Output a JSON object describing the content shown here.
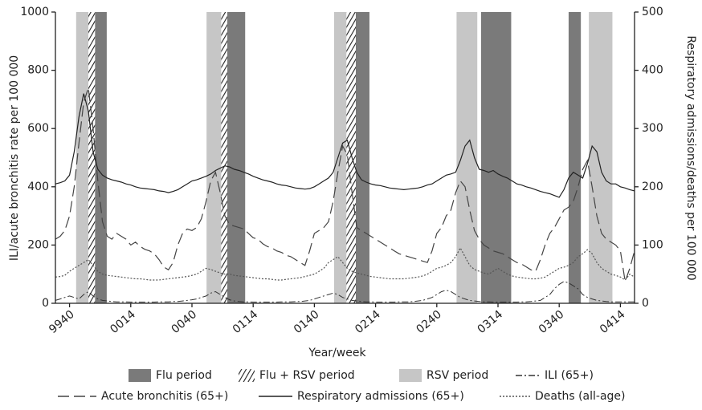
{
  "chart_data": {
    "type": "line",
    "xlabel": "Year/week",
    "ylabel": "ILI/acute bronchitis rate per 100 000",
    "y2label": "Respiratory admissions/deaths per 100 000",
    "ylim": [
      0,
      1000
    ],
    "yticks": [
      0,
      200,
      400,
      600,
      800,
      1000
    ],
    "y2lim": [
      0,
      500
    ],
    "y2ticks": [
      0,
      100,
      200,
      300,
      400,
      500
    ],
    "categories": [
      null,
      null,
      null,
      "9940",
      null,
      null,
      null,
      null,
      null,
      null,
      null,
      null,
      null,
      null,
      null,
      null,
      "0014",
      null,
      null,
      null,
      null,
      null,
      null,
      null,
      null,
      null,
      null,
      null,
      null,
      "0040",
      null,
      null,
      null,
      null,
      null,
      null,
      null,
      null,
      null,
      null,
      null,
      null,
      "0114",
      null,
      null,
      null,
      null,
      null,
      null,
      null,
      null,
      null,
      null,
      null,
      null,
      "0140",
      null,
      null,
      null,
      null,
      null,
      null,
      null,
      null,
      null,
      null,
      null,
      null,
      "0214",
      null,
      null,
      null,
      null,
      null,
      null,
      null,
      null,
      null,
      null,
      null,
      null,
      "0240",
      null,
      null,
      null,
      null,
      null,
      null,
      null,
      null,
      null,
      null,
      null,
      null,
      "0314",
      null,
      null,
      null,
      null,
      null,
      null,
      null,
      null,
      null,
      null,
      null,
      null,
      "0340",
      null,
      null,
      null,
      null,
      null,
      null,
      null,
      null,
      null,
      null,
      null,
      null,
      "0414",
      null,
      null,
      null
    ],
    "bands": [
      {
        "name": "Flu period",
        "color": "#7a7a7a",
        "periods": [
          [
            8.4,
            10.9
          ],
          [
            36.5,
            40.3
          ],
          [
            63.8,
            66.7
          ],
          [
            90.4,
            96.8
          ],
          [
            109.0,
            111.6
          ]
        ]
      },
      {
        "name": "Flu + RSV period",
        "color": "#ffffff",
        "hatch": true,
        "periods": [
          [
            7.0,
            8.4
          ],
          [
            35.2,
            36.5
          ],
          [
            61.8,
            63.8
          ]
        ]
      },
      {
        "name": "RSV period",
        "color": "#c6c6c6",
        "periods": [
          [
            4.4,
            7.0
          ],
          [
            32.1,
            35.2
          ],
          [
            59.2,
            61.8
          ],
          [
            85.2,
            89.6
          ],
          [
            113.3,
            118.3
          ]
        ]
      }
    ],
    "series": [
      {
        "name": "ILI (65+)",
        "color": "#333333",
        "dash": "8 3 2 3",
        "width": 1,
        "values": [
          10,
          15,
          20,
          25,
          20,
          15,
          30,
          40,
          25,
          15,
          10,
          8,
          6,
          5,
          5,
          5,
          4,
          4,
          4,
          4,
          4,
          4,
          5,
          5,
          5,
          6,
          6,
          8,
          10,
          12,
          15,
          20,
          25,
          35,
          40,
          30,
          20,
          12,
          8,
          6,
          5,
          5,
          4,
          4,
          4,
          4,
          4,
          4,
          5,
          5,
          5,
          6,
          6,
          8,
          10,
          15,
          20,
          25,
          30,
          35,
          30,
          20,
          15,
          10,
          8,
          6,
          5,
          5,
          4,
          4,
          4,
          4,
          4,
          5,
          5,
          5,
          6,
          8,
          10,
          15,
          20,
          30,
          40,
          45,
          40,
          30,
          20,
          15,
          10,
          8,
          6,
          5,
          5,
          4,
          4,
          4,
          4,
          4,
          4,
          5,
          5,
          6,
          8,
          10,
          20,
          30,
          50,
          65,
          75,
          70,
          60,
          50,
          30,
          20,
          15,
          10,
          8,
          6,
          5,
          5,
          5,
          5,
          5,
          5
        ]
      },
      {
        "name": "Acute bronchitis (65+)",
        "color": "#444444",
        "dash": "14 6",
        "width": 1.2,
        "values": [
          220,
          230,
          250,
          300,
          400,
          550,
          690,
          740,
          600,
          420,
          280,
          230,
          220,
          240,
          230,
          220,
          200,
          210,
          195,
          185,
          180,
          170,
          150,
          125,
          115,
          140,
          200,
          240,
          255,
          250,
          260,
          290,
          350,
          420,
          450,
          380,
          300,
          270,
          265,
          260,
          255,
          240,
          225,
          220,
          205,
          195,
          190,
          180,
          175,
          165,
          160,
          150,
          140,
          130,
          180,
          240,
          250,
          260,
          280,
          350,
          450,
          540,
          510,
          380,
          260,
          250,
          240,
          230,
          220,
          210,
          200,
          190,
          180,
          170,
          165,
          160,
          155,
          150,
          145,
          140,
          180,
          240,
          260,
          300,
          320,
          380,
          420,
          400,
          320,
          250,
          220,
          200,
          190,
          180,
          175,
          170,
          160,
          150,
          140,
          135,
          125,
          115,
          110,
          150,
          200,
          240,
          260,
          290,
          320,
          330,
          350,
          400,
          460,
          490,
          400,
          300,
          240,
          220,
          210,
          200,
          180,
          75,
          120,
          180
        ]
      },
      {
        "name": "Respiratory admissions (65+)",
        "color": "#222222",
        "dash": "",
        "width": 1.2,
        "axis": "y2",
        "values": [
          205,
          207,
          210,
          220,
          260,
          320,
          360,
          330,
          260,
          230,
          220,
          215,
          212,
          210,
          208,
          205,
          203,
          200,
          198,
          197,
          196,
          195,
          193,
          192,
          190,
          192,
          195,
          200,
          205,
          210,
          212,
          215,
          218,
          222,
          228,
          232,
          236,
          234,
          230,
          228,
          225,
          222,
          218,
          215,
          212,
          210,
          208,
          205,
          203,
          202,
          200,
          198,
          197,
          196,
          197,
          200,
          205,
          210,
          215,
          225,
          250,
          275,
          280,
          250,
          225,
          212,
          208,
          205,
          203,
          202,
          200,
          198,
          197,
          196,
          195,
          196,
          197,
          198,
          200,
          203,
          205,
          210,
          215,
          220,
          222,
          225,
          245,
          270,
          280,
          250,
          230,
          228,
          225,
          228,
          222,
          218,
          215,
          210,
          205,
          203,
          200,
          198,
          195,
          192,
          190,
          188,
          185,
          182,
          195,
          215,
          225,
          220,
          215,
          240,
          270,
          260,
          225,
          210,
          205,
          205,
          200,
          198,
          195,
          193
        ]
      },
      {
        "name": "Deaths (all-age)",
        "color": "#555555",
        "dash": "2 2",
        "width": 1.2,
        "axis": "y2",
        "values": [
          45,
          46,
          48,
          55,
          60,
          65,
          70,
          75,
          65,
          55,
          50,
          48,
          47,
          46,
          45,
          44,
          43,
          42,
          42,
          41,
          40,
          40,
          40,
          41,
          42,
          43,
          44,
          45,
          46,
          48,
          50,
          55,
          60,
          58,
          55,
          52,
          50,
          50,
          48,
          47,
          46,
          45,
          44,
          43,
          42,
          42,
          41,
          40,
          40,
          41,
          42,
          43,
          44,
          46,
          48,
          50,
          55,
          60,
          70,
          75,
          80,
          70,
          60,
          55,
          52,
          50,
          48,
          46,
          45,
          44,
          43,
          42,
          42,
          42,
          42,
          43,
          44,
          45,
          47,
          50,
          55,
          60,
          62,
          65,
          70,
          80,
          95,
          80,
          65,
          58,
          55,
          52,
          50,
          55,
          60,
          55,
          50,
          47,
          45,
          44,
          43,
          42,
          42,
          43,
          45,
          50,
          55,
          60,
          62,
          65,
          70,
          80,
          85,
          92,
          85,
          70,
          60,
          55,
          50,
          48,
          45,
          40,
          50,
          45
        ]
      }
    ]
  }
}
